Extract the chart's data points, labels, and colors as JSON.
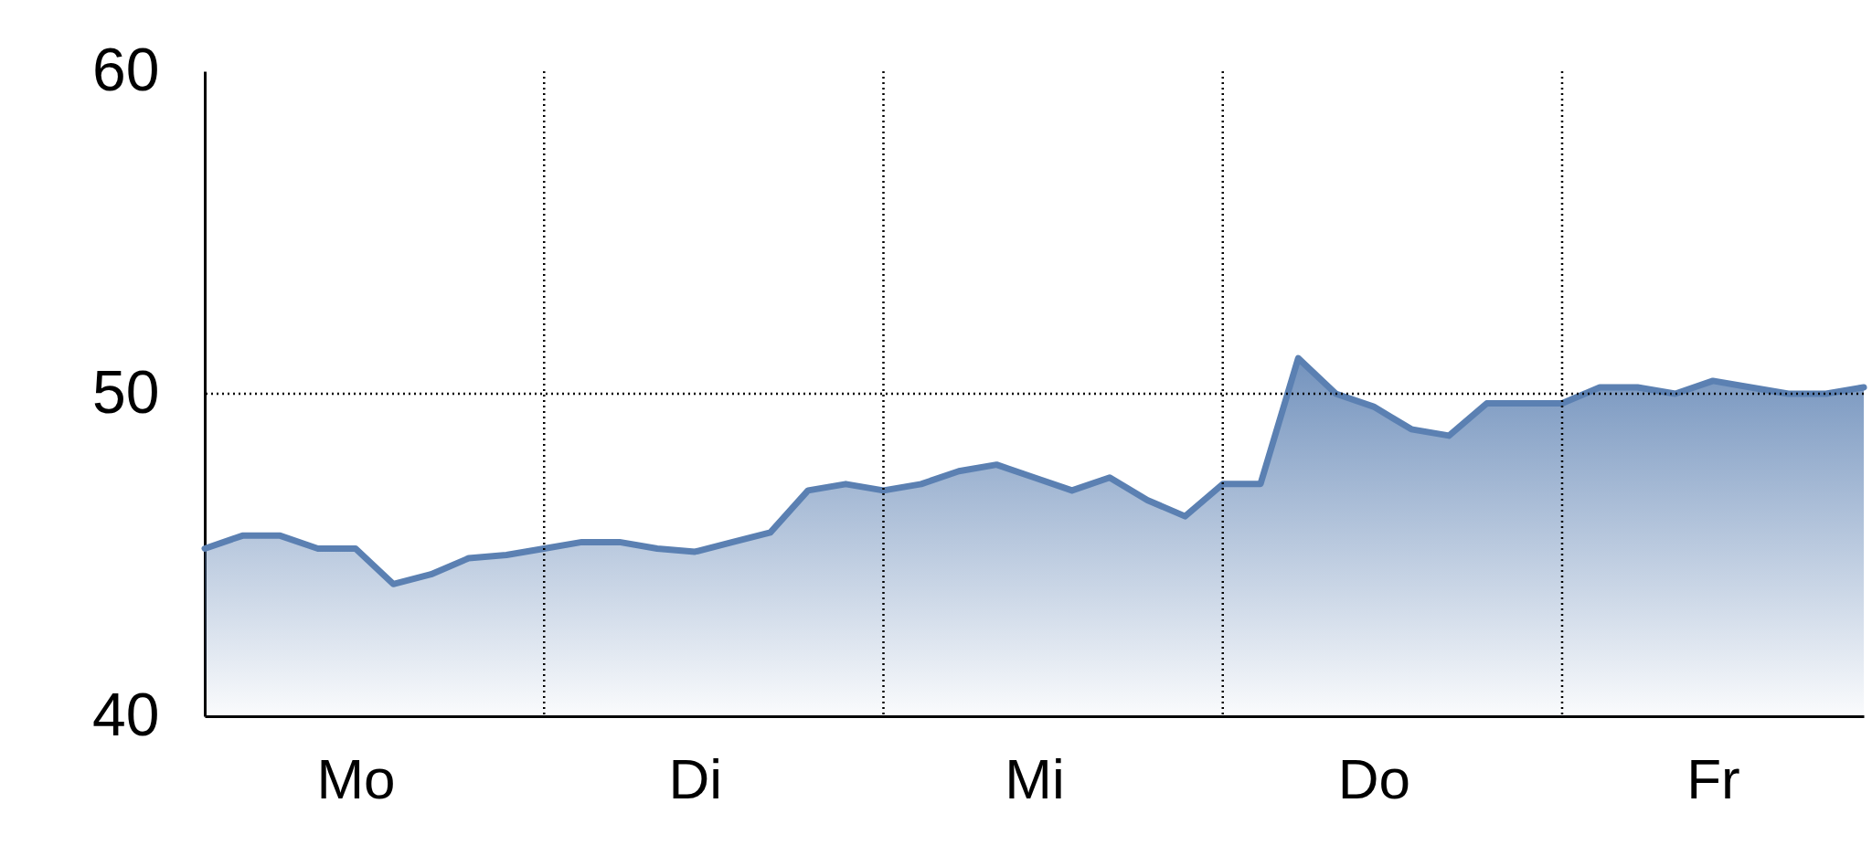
{
  "chart_data": {
    "type": "area",
    "categories": [
      null,
      null,
      null,
      null,
      "Mo",
      null,
      null,
      null,
      null,
      null,
      null,
      null,
      null,
      "Di",
      null,
      null,
      null,
      null,
      null,
      null,
      null,
      null,
      "Mi",
      null,
      null,
      null,
      null,
      null,
      null,
      null,
      null,
      "Do",
      null,
      null,
      null,
      null,
      null,
      null,
      null,
      null,
      "Fr",
      null,
      null,
      null,
      null
    ],
    "ylim": [
      40,
      60
    ],
    "yticks": [
      40,
      50,
      60
    ],
    "series": [
      {
        "color": "#5b80b2",
        "values": [
          45.2,
          45.6,
          45.6,
          45.2,
          45.2,
          44.1,
          44.4,
          44.9,
          45.0,
          45.2,
          45.4,
          45.4,
          45.2,
          45.1,
          45.4,
          45.7,
          47.0,
          47.2,
          47.0,
          47.2,
          47.6,
          47.8,
          47.4,
          47.0,
          47.4,
          46.7,
          46.2,
          47.2,
          47.2,
          51.1,
          50.0,
          49.6,
          48.9,
          48.7,
          49.7,
          49.7,
          49.7,
          50.2,
          50.2,
          50.0,
          50.4,
          50.2,
          50.0,
          50.0,
          50.2
        ]
      }
    ],
    "ref_lines": [
      {
        "axis": "y",
        "value": 50,
        "line_style": "dotted"
      }
    ],
    "grid": "x"
  }
}
